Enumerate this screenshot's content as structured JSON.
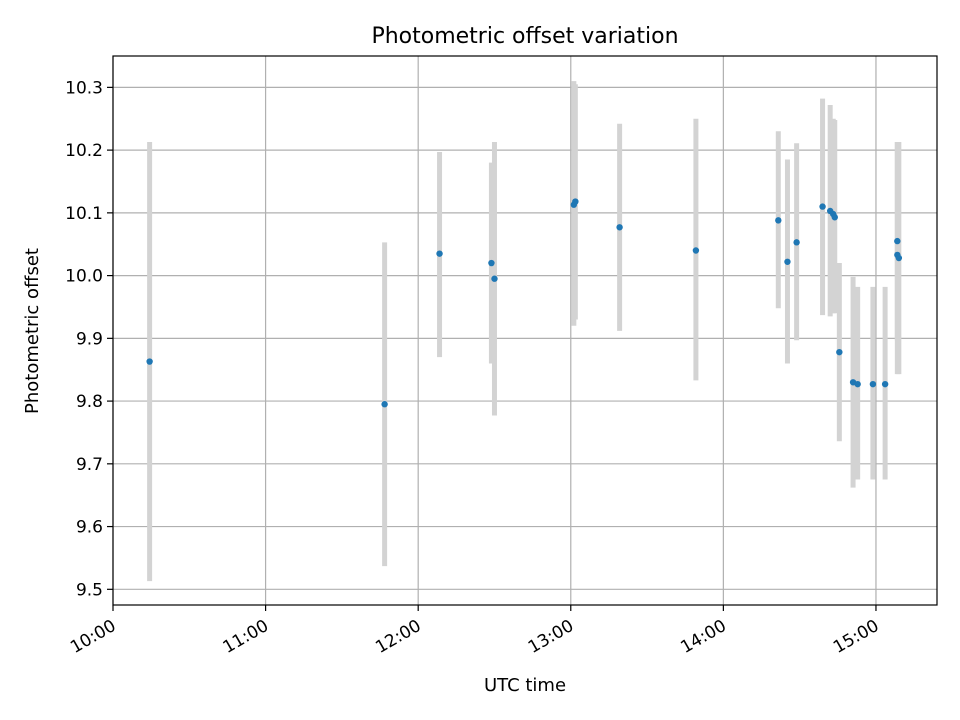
{
  "chart_data": {
    "type": "scatter",
    "title": "Photometric offset variation",
    "xlabel": "UTC time",
    "ylabel": "Photometric offset",
    "x_unit": "hours",
    "xlim": [
      10.0,
      15.4
    ],
    "ylim": [
      9.475,
      10.35
    ],
    "grid": true,
    "x_ticks": [
      {
        "value": 10,
        "label": "10:00"
      },
      {
        "value": 11,
        "label": "11:00"
      },
      {
        "value": 12,
        "label": "12:00"
      },
      {
        "value": 13,
        "label": "13:00"
      },
      {
        "value": 14,
        "label": "14:00"
      },
      {
        "value": 15,
        "label": "15:00"
      }
    ],
    "y_ticks": [
      {
        "value": 9.5,
        "label": "9.5"
      },
      {
        "value": 9.6,
        "label": "9.6"
      },
      {
        "value": 9.7,
        "label": "9.7"
      },
      {
        "value": 9.8,
        "label": "9.8"
      },
      {
        "value": 9.9,
        "label": "9.9"
      },
      {
        "value": 10.0,
        "label": "10.0"
      },
      {
        "value": 10.1,
        "label": "10.1"
      },
      {
        "value": 10.2,
        "label": "10.2"
      },
      {
        "value": 10.3,
        "label": "10.3"
      }
    ],
    "series": [
      {
        "marker_color": "#1f77b4",
        "errorbar_color": "#d3d3d3",
        "points": [
          {
            "x": 10.24,
            "y": 9.863,
            "ylow": 9.513,
            "yhigh": 10.213
          },
          {
            "x": 11.78,
            "y": 9.795,
            "ylow": 9.537,
            "yhigh": 10.053
          },
          {
            "x": 12.14,
            "y": 10.035,
            "ylow": 9.87,
            "yhigh": 10.197
          },
          {
            "x": 12.48,
            "y": 10.02,
            "ylow": 9.86,
            "yhigh": 10.18
          },
          {
            "x": 12.5,
            "y": 9.995,
            "ylow": 9.777,
            "yhigh": 10.213
          },
          {
            "x": 13.02,
            "y": 10.113,
            "ylow": 9.92,
            "yhigh": 10.31
          },
          {
            "x": 13.03,
            "y": 10.118,
            "ylow": 9.93,
            "yhigh": 10.305
          },
          {
            "x": 13.32,
            "y": 10.077,
            "ylow": 9.912,
            "yhigh": 10.242
          },
          {
            "x": 13.82,
            "y": 10.04,
            "ylow": 9.833,
            "yhigh": 10.25
          },
          {
            "x": 14.36,
            "y": 10.088,
            "ylow": 9.948,
            "yhigh": 10.23
          },
          {
            "x": 14.42,
            "y": 10.022,
            "ylow": 9.86,
            "yhigh": 10.185
          },
          {
            "x": 14.48,
            "y": 10.053,
            "ylow": 9.897,
            "yhigh": 10.211
          },
          {
            "x": 14.65,
            "y": 10.11,
            "ylow": 9.937,
            "yhigh": 10.282
          },
          {
            "x": 14.7,
            "y": 10.103,
            "ylow": 9.935,
            "yhigh": 10.272
          },
          {
            "x": 14.72,
            "y": 10.098,
            "ylow": 9.94,
            "yhigh": 10.25
          },
          {
            "x": 14.73,
            "y": 10.093,
            "ylow": 9.94,
            "yhigh": 10.248
          },
          {
            "x": 14.76,
            "y": 9.878,
            "ylow": 9.736,
            "yhigh": 10.02
          },
          {
            "x": 14.85,
            "y": 9.83,
            "ylow": 9.662,
            "yhigh": 9.998
          },
          {
            "x": 14.88,
            "y": 9.827,
            "ylow": 9.675,
            "yhigh": 9.982
          },
          {
            "x": 14.98,
            "y": 9.827,
            "ylow": 9.675,
            "yhigh": 9.982
          },
          {
            "x": 15.06,
            "y": 9.827,
            "ylow": 9.675,
            "yhigh": 9.982
          },
          {
            "x": 15.14,
            "y": 10.055,
            "ylow": 9.897,
            "yhigh": 10.213
          },
          {
            "x": 15.14,
            "y": 10.033,
            "ylow": 9.843,
            "yhigh": 10.213
          },
          {
            "x": 15.15,
            "y": 10.028,
            "ylow": 9.843,
            "yhigh": 10.213
          }
        ]
      }
    ]
  }
}
